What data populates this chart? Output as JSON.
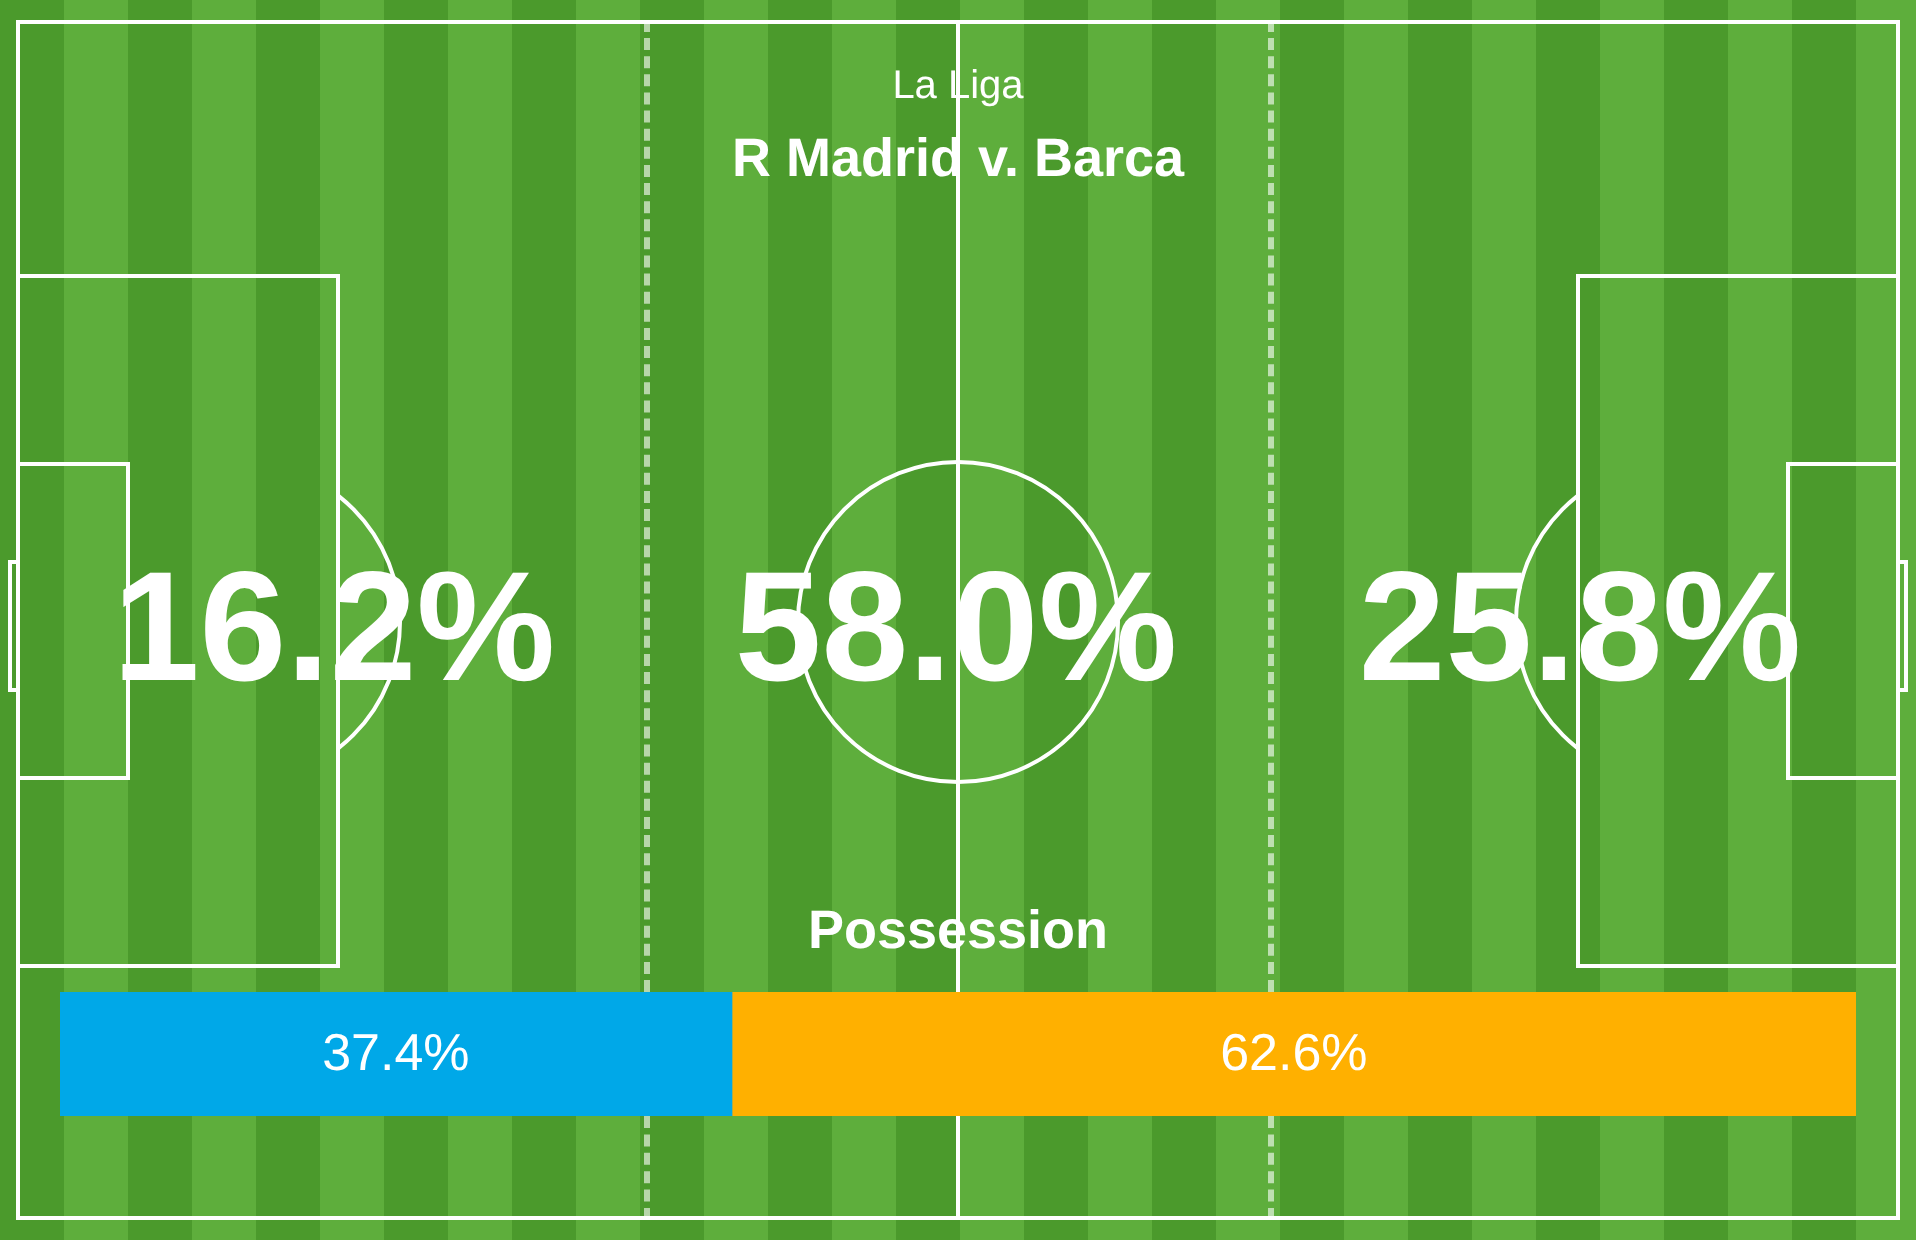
{
  "chart_data": [
    {
      "type": "other",
      "title": "La Liga",
      "subtitle": "R Madrid v. Barca",
      "categories": [
        null,
        null,
        null
      ],
      "values": [
        16.2,
        58.0,
        25.8
      ],
      "value_labels": [
        "16.2%",
        "58.0%",
        "25.8%"
      ]
    },
    {
      "type": "bar",
      "title": "Possession",
      "orientation": "horizontal",
      "stacked": true,
      "categories": [
        null
      ],
      "tick_labels": false,
      "series": [
        {
          "color": "#00a8e8",
          "values": [
            37.4
          ],
          "value_labels": [
            "37.4%"
          ]
        },
        {
          "color": "#ffb000",
          "values": [
            62.6
          ],
          "value_labels": [
            "62.6%"
          ]
        }
      ]
    }
  ]
}
